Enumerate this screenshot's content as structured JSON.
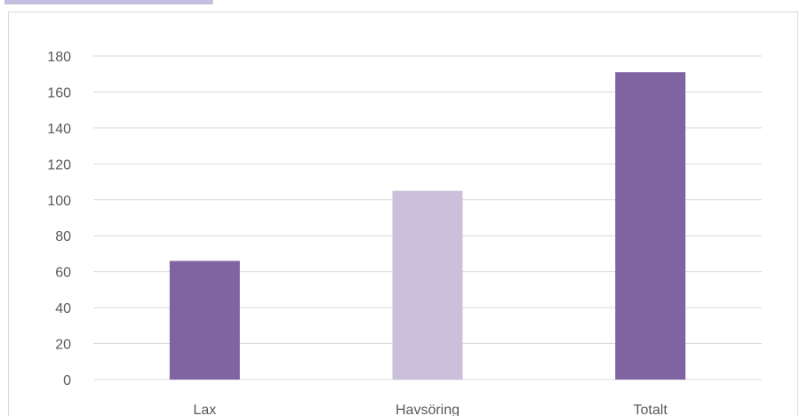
{
  "chart_data": {
    "type": "bar",
    "categories": [
      "Lax",
      "Havsöring",
      "Totalt"
    ],
    "values": [
      66,
      105,
      171
    ],
    "bar_colors": [
      "#8064a2",
      "#cbc0dc",
      "#8064a2"
    ],
    "ylim": [
      0,
      180
    ],
    "y_ticks": [
      0,
      20,
      40,
      60,
      80,
      100,
      120,
      140,
      160,
      180
    ],
    "title": "",
    "xlabel": "",
    "ylabel": "",
    "grid": true,
    "legend": "none"
  },
  "colors": {
    "grid": "#d9d9d9",
    "tick_text": "#595959",
    "frame_border": "#d9d9d9",
    "top_tab": "#c6bedf"
  }
}
